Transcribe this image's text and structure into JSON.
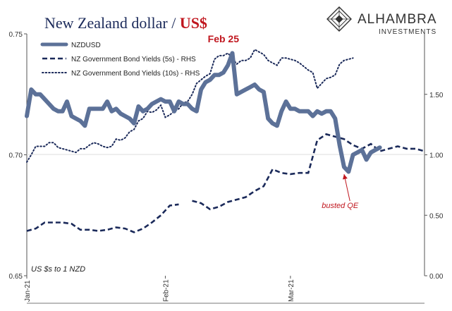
{
  "chart_data": {
    "type": "line",
    "title": {
      "part1": "New Zealand dollar / ",
      "part2": "US$",
      "part1_color": "#1b2a5a",
      "part2_color": "#c0161e"
    },
    "logo": {
      "name": "ALHAMBRA",
      "sub": "INVESTMENTS",
      "icon": "alhambra-diamond-logo"
    },
    "left_axis": {
      "ylim": [
        0.65,
        0.75
      ],
      "ticks": [
        0.65,
        0.7,
        0.75
      ],
      "tick_labels": [
        "0.65",
        "0.70",
        "0.75"
      ],
      "note": "US $s to 1 NZD"
    },
    "right_axis": {
      "ylim": [
        0.0,
        2.0
      ],
      "ticks": [
        0.0,
        0.5,
        1.0,
        1.5
      ],
      "tick_labels": [
        "0.00",
        "0.50",
        "1.00",
        "1.50"
      ]
    },
    "x_axis": {
      "start": "2021-01-01",
      "end": "2021-03-31",
      "ticks": [
        "2021-01-01",
        "2021-02-01",
        "2021-03-01"
      ],
      "tick_labels": [
        "Jan-21",
        "Feb-21",
        "Mar-21"
      ]
    },
    "series": [
      {
        "name": "NZDUSD",
        "axis": "left",
        "style": "solid",
        "color": "#5c7198",
        "points": [
          [
            "2021-01-01",
            0.716
          ],
          [
            "2021-01-02",
            0.727
          ],
          [
            "2021-01-03",
            0.725
          ],
          [
            "2021-01-04",
            0.725
          ],
          [
            "2021-01-05",
            0.723
          ],
          [
            "2021-01-06",
            0.721
          ],
          [
            "2021-01-07",
            0.719
          ],
          [
            "2021-01-08",
            0.718
          ],
          [
            "2021-01-09",
            0.718
          ],
          [
            "2021-01-10",
            0.722
          ],
          [
            "2021-01-11",
            0.716
          ],
          [
            "2021-01-12",
            0.715
          ],
          [
            "2021-01-13",
            0.714
          ],
          [
            "2021-01-14",
            0.712
          ],
          [
            "2021-01-15",
            0.719
          ],
          [
            "2021-01-16",
            0.719
          ],
          [
            "2021-01-17",
            0.719
          ],
          [
            "2021-01-18",
            0.719
          ],
          [
            "2021-01-19",
            0.722
          ],
          [
            "2021-01-20",
            0.718
          ],
          [
            "2021-01-21",
            0.719
          ],
          [
            "2021-01-22",
            0.717
          ],
          [
            "2021-01-23",
            0.716
          ],
          [
            "2021-01-24",
            0.715
          ],
          [
            "2021-01-25",
            0.713
          ],
          [
            "2021-01-26",
            0.72
          ],
          [
            "2021-01-27",
            0.718
          ],
          [
            "2021-01-28",
            0.719
          ],
          [
            "2021-01-29",
            0.721
          ],
          [
            "2021-01-30",
            0.722
          ],
          [
            "2021-01-31",
            0.723
          ],
          [
            "2021-02-01",
            0.722
          ],
          [
            "2021-02-02",
            0.722
          ],
          [
            "2021-02-03",
            0.718
          ],
          [
            "2021-02-04",
            0.722
          ],
          [
            "2021-02-05",
            0.721
          ],
          [
            "2021-02-06",
            0.721
          ],
          [
            "2021-02-07",
            0.719
          ],
          [
            "2021-02-08",
            0.718
          ],
          [
            "2021-02-09",
            0.727
          ],
          [
            "2021-02-10",
            0.73
          ],
          [
            "2021-02-11",
            0.731
          ],
          [
            "2021-02-12",
            0.733
          ],
          [
            "2021-02-13",
            0.733
          ],
          [
            "2021-02-14",
            0.734
          ],
          [
            "2021-02-15",
            0.737
          ],
          [
            "2021-02-16",
            0.742
          ],
          [
            "2021-02-17",
            0.725
          ],
          [
            "2021-02-18",
            0.726
          ],
          [
            "2021-02-19",
            0.727
          ],
          [
            "2021-02-20",
            0.728
          ],
          [
            "2021-02-21",
            0.729
          ],
          [
            "2021-02-22",
            0.727
          ],
          [
            "2021-02-23",
            0.726
          ],
          [
            "2021-02-24",
            0.715
          ],
          [
            "2021-02-25",
            0.713
          ],
          [
            "2021-02-26",
            0.712
          ],
          [
            "2021-02-27",
            0.718
          ],
          [
            "2021-02-28",
            0.722
          ],
          [
            "2021-03-01",
            0.719
          ],
          [
            "2021-03-02",
            0.719
          ],
          [
            "2021-03-03",
            0.718
          ],
          [
            "2021-03-04",
            0.718
          ],
          [
            "2021-03-05",
            0.718
          ],
          [
            "2021-03-06",
            0.716
          ],
          [
            "2021-03-07",
            0.718
          ],
          [
            "2021-03-08",
            0.717
          ],
          [
            "2021-03-09",
            0.718
          ],
          [
            "2021-03-10",
            0.718
          ],
          [
            "2021-03-11",
            0.715
          ],
          [
            "2021-03-12",
            0.704
          ],
          [
            "2021-03-13",
            0.695
          ],
          [
            "2021-03-14",
            0.693
          ],
          [
            "2021-03-15",
            0.7
          ],
          [
            "2021-03-16",
            0.701
          ],
          [
            "2021-03-17",
            0.702
          ],
          [
            "2021-03-18",
            0.698
          ],
          [
            "2021-03-19",
            0.701
          ],
          [
            "2021-03-20",
            0.702
          ],
          [
            "2021-03-21",
            0.703
          ]
        ]
      },
      {
        "name": "NZ Government Bond Yields (5s) - RHS",
        "axis": "right",
        "style": "dashed",
        "color": "#1b2a5a",
        "segments": [
          [
            [
              "2021-01-01",
              0.37
            ],
            [
              "2021-01-03",
              0.39
            ],
            [
              "2021-01-05",
              0.44
            ],
            [
              "2021-01-07",
              0.44
            ],
            [
              "2021-01-09",
              0.44
            ],
            [
              "2021-01-11",
              0.43
            ],
            [
              "2021-01-13",
              0.38
            ],
            [
              "2021-01-15",
              0.38
            ],
            [
              "2021-01-17",
              0.37
            ],
            [
              "2021-01-19",
              0.38
            ],
            [
              "2021-01-21",
              0.4
            ],
            [
              "2021-01-23",
              0.39
            ],
            [
              "2021-01-25",
              0.36
            ],
            [
              "2021-01-27",
              0.39
            ],
            [
              "2021-01-29",
              0.44
            ],
            [
              "2021-01-31",
              0.5
            ],
            [
              "2021-02-02",
              0.58
            ],
            [
              "2021-02-04",
              0.59
            ]
          ],
          [
            [
              "2021-02-07",
              0.62
            ],
            [
              "2021-02-09",
              0.6
            ],
            [
              "2021-02-11",
              0.55
            ],
            [
              "2021-02-13",
              0.57
            ],
            [
              "2021-02-15",
              0.61
            ],
            [
              "2021-02-17",
              0.63
            ],
            [
              "2021-02-19",
              0.65
            ],
            [
              "2021-02-21",
              0.7
            ],
            [
              "2021-02-23",
              0.74
            ],
            [
              "2021-02-25",
              0.88
            ],
            [
              "2021-02-27",
              0.85
            ],
            [
              "2021-03-01",
              0.84
            ],
            [
              "2021-03-03",
              0.85
            ],
            [
              "2021-03-05",
              0.85
            ],
            [
              "2021-03-07",
              1.12
            ],
            [
              "2021-03-09",
              1.17
            ],
            [
              "2021-03-11",
              1.15
            ],
            [
              "2021-03-13",
              1.13
            ],
            [
              "2021-03-15",
              1.08
            ],
            [
              "2021-03-17",
              1.05
            ],
            [
              "2021-03-19",
              1.09
            ],
            [
              "2021-03-21",
              1.03
            ],
            [
              "2021-03-23",
              1.05
            ],
            [
              "2021-03-25",
              1.07
            ],
            [
              "2021-03-27",
              1.05
            ],
            [
              "2021-03-29",
              1.05
            ],
            [
              "2021-03-31",
              1.03
            ]
          ]
        ]
      },
      {
        "name": "NZ Government Bond Yields (10s) - RHS",
        "axis": "right",
        "style": "dotted",
        "color": "#1b2a5a",
        "points": [
          [
            "2021-01-01",
            0.94
          ],
          [
            "2021-01-02",
            1.0
          ],
          [
            "2021-01-03",
            1.07
          ],
          [
            "2021-01-04",
            1.07
          ],
          [
            "2021-01-05",
            1.07
          ],
          [
            "2021-01-06",
            1.1
          ],
          [
            "2021-01-07",
            1.1
          ],
          [
            "2021-01-08",
            1.06
          ],
          [
            "2021-01-09",
            1.05
          ],
          [
            "2021-01-10",
            1.04
          ],
          [
            "2021-01-11",
            1.03
          ],
          [
            "2021-01-12",
            1.02
          ],
          [
            "2021-01-13",
            1.05
          ],
          [
            "2021-01-14",
            1.05
          ],
          [
            "2021-01-15",
            1.08
          ],
          [
            "2021-01-16",
            1.1
          ],
          [
            "2021-01-17",
            1.09
          ],
          [
            "2021-01-18",
            1.07
          ],
          [
            "2021-01-19",
            1.06
          ],
          [
            "2021-01-20",
            1.07
          ],
          [
            "2021-01-21",
            1.13
          ],
          [
            "2021-01-22",
            1.12
          ],
          [
            "2021-01-23",
            1.14
          ],
          [
            "2021-01-24",
            1.19
          ],
          [
            "2021-01-25",
            1.21
          ],
          [
            "2021-01-26",
            1.28
          ],
          [
            "2021-01-27",
            1.3
          ],
          [
            "2021-01-28",
            1.36
          ],
          [
            "2021-01-29",
            1.35
          ],
          [
            "2021-01-30",
            1.37
          ],
          [
            "2021-01-31",
            1.41
          ],
          [
            "2021-02-01",
            1.31
          ],
          [
            "2021-02-02",
            1.33
          ],
          [
            "2021-02-03",
            1.36
          ],
          [
            "2021-02-04",
            1.38
          ],
          [
            "2021-02-05",
            1.43
          ],
          [
            "2021-02-06",
            1.44
          ],
          [
            "2021-02-07",
            1.5
          ],
          [
            "2021-02-08",
            1.59
          ],
          [
            "2021-02-09",
            1.62
          ],
          [
            "2021-02-10",
            1.65
          ],
          [
            "2021-02-11",
            1.67
          ],
          [
            "2021-02-12",
            1.79
          ],
          [
            "2021-02-13",
            1.82
          ],
          [
            "2021-02-14",
            1.82
          ],
          [
            "2021-02-15",
            1.84
          ],
          [
            "2021-02-16",
            1.8
          ],
          [
            "2021-02-17",
            1.75
          ],
          [
            "2021-02-18",
            1.78
          ],
          [
            "2021-02-19",
            1.78
          ],
          [
            "2021-02-20",
            1.8
          ],
          [
            "2021-02-21",
            1.87
          ],
          [
            "2021-02-22",
            1.85
          ],
          [
            "2021-02-23",
            1.83
          ],
          [
            "2021-02-24",
            1.78
          ],
          [
            "2021-02-25",
            1.76
          ],
          [
            "2021-02-26",
            1.74
          ],
          [
            "2021-02-27",
            1.8
          ],
          [
            "2021-02-28",
            1.8
          ],
          [
            "2021-03-01",
            1.79
          ],
          [
            "2021-03-02",
            1.78
          ],
          [
            "2021-03-03",
            1.76
          ],
          [
            "2021-03-04",
            1.73
          ],
          [
            "2021-03-05",
            1.7
          ],
          [
            "2021-03-06",
            1.68
          ],
          [
            "2021-03-07",
            1.55
          ],
          [
            "2021-03-08",
            1.59
          ],
          [
            "2021-03-09",
            1.63
          ],
          [
            "2021-03-10",
            1.64
          ],
          [
            "2021-03-11",
            1.66
          ],
          [
            "2021-03-12",
            1.75
          ],
          [
            "2021-03-13",
            1.78
          ],
          [
            "2021-03-14",
            1.79
          ],
          [
            "2021-03-15",
            1.8
          ]
        ]
      }
    ],
    "legend": {
      "placement": "top-left",
      "entries": [
        {
          "label": "NZDUSD",
          "style": "solid"
        },
        {
          "label": "NZ Government Bond Yields (5s) - RHS",
          "style": "dashed"
        },
        {
          "label": "NZ Government Bond Yields (10s) - RHS",
          "style": "dotted"
        }
      ]
    },
    "annotations": [
      {
        "text": "Feb 25",
        "date": "2021-02-14",
        "value": 0.7465,
        "axis": "left",
        "color": "#c0161e",
        "bold": true
      },
      {
        "text": "busted QE",
        "date": "2021-03-08",
        "value": 0.678,
        "axis": "left",
        "color": "#c0161e",
        "italic": true,
        "arrow_to": {
          "date": "2021-03-13",
          "value": 0.692
        }
      }
    ],
    "grid": false
  }
}
